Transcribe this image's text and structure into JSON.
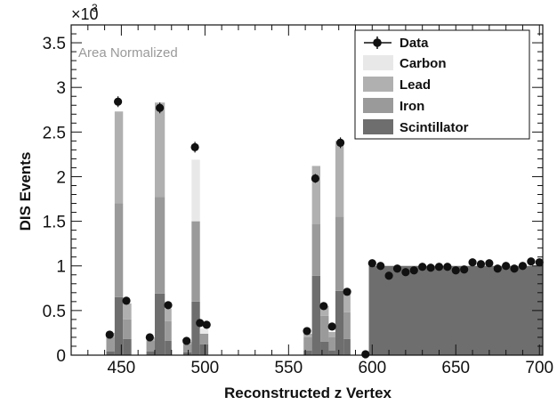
{
  "chart_data": {
    "type": "bar",
    "stacked": true,
    "title": "",
    "xlabel": "Reconstructed z Vertex",
    "ylabel": "DIS Events",
    "y_exponent_base": "×10",
    "y_exponent_power": "3",
    "annotation": "Area Normalized",
    "xlim": [
      420,
      702
    ],
    "ylim": [
      0,
      3.7
    ],
    "x_ticks": [
      450,
      500,
      550,
      600,
      650,
      700
    ],
    "y_ticks": [
      0,
      0.5,
      1,
      1.5,
      2,
      2.5,
      3,
      3.5
    ],
    "y_tick_labels": [
      "0",
      "0.5",
      "1",
      "1.5",
      "2",
      "2.5",
      "3",
      "3.5"
    ],
    "legend_position": "top-right",
    "series": [
      {
        "name": "Scintillator",
        "color": "#6e6e6e",
        "type": "bar"
      },
      {
        "name": "Iron",
        "color": "#9a9a9a",
        "type": "bar"
      },
      {
        "name": "Lead",
        "color": "#b0b0b0",
        "type": "bar"
      },
      {
        "name": "Carbon",
        "color": "#e8e8e8",
        "type": "bar"
      },
      {
        "name": "Data",
        "color": "#111111",
        "type": "points"
      }
    ],
    "bars": [
      {
        "x0": 441,
        "x1": 446,
        "values": [
          0.04,
          0.16,
          0.05,
          0
        ]
      },
      {
        "x0": 446,
        "x1": 451,
        "values": [
          0.65,
          1.05,
          1.03,
          0
        ]
      },
      {
        "x0": 451,
        "x1": 456,
        "values": [
          0.18,
          0.22,
          0.18,
          0
        ]
      },
      {
        "x0": 465,
        "x1": 470,
        "values": [
          0.04,
          0.12,
          0.04,
          0
        ]
      },
      {
        "x0": 470,
        "x1": 476,
        "values": [
          0.69,
          1.08,
          1.06,
          0
        ]
      },
      {
        "x0": 476,
        "x1": 480,
        "values": [
          0.16,
          0.22,
          0.14,
          0
        ]
      },
      {
        "x0": 487,
        "x1": 492,
        "values": [
          0.03,
          0.09,
          0.03,
          0
        ]
      },
      {
        "x0": 492,
        "x1": 497,
        "values": [
          0.6,
          0.9,
          0,
          0.69
        ]
      },
      {
        "x0": 497,
        "x1": 502,
        "values": [
          0.12,
          0.12,
          0,
          0.06
        ]
      },
      {
        "x0": 559,
        "x1": 564,
        "values": [
          0.05,
          0.15,
          0.04,
          0
        ]
      },
      {
        "x0": 564,
        "x1": 569,
        "values": [
          0.89,
          0.58,
          0.65,
          0
        ]
      },
      {
        "x0": 569,
        "x1": 574,
        "values": [
          0.15,
          0.29,
          0.11,
          0
        ]
      },
      {
        "x0": 574,
        "x1": 578,
        "values": [
          0.05,
          0.15,
          0.06,
          0
        ]
      },
      {
        "x0": 578,
        "x1": 583,
        "values": [
          0.72,
          0.83,
          0.85,
          0
        ]
      },
      {
        "x0": 583,
        "x1": 587,
        "values": [
          0.18,
          0.3,
          0.2,
          0
        ]
      },
      {
        "x0": 598,
        "x1": 702,
        "values": [
          1.0,
          0,
          0,
          0
        ]
      }
    ],
    "data_points": [
      {
        "x": 443,
        "y": 0.23,
        "err": 0.03
      },
      {
        "x": 448,
        "y": 2.84,
        "err": 0.06
      },
      {
        "x": 453,
        "y": 0.61,
        "err": 0.03
      },
      {
        "x": 467,
        "y": 0.2,
        "err": 0.03
      },
      {
        "x": 473,
        "y": 2.77,
        "err": 0.06
      },
      {
        "x": 478,
        "y": 0.56,
        "err": 0.03
      },
      {
        "x": 489,
        "y": 0.16,
        "err": 0.03
      },
      {
        "x": 494,
        "y": 2.33,
        "err": 0.06
      },
      {
        "x": 497,
        "y": 0.36,
        "err": 0.03
      },
      {
        "x": 501,
        "y": 0.34,
        "err": 0.03
      },
      {
        "x": 561,
        "y": 0.27,
        "err": 0.03
      },
      {
        "x": 566,
        "y": 1.98,
        "err": 0.05
      },
      {
        "x": 571,
        "y": 0.55,
        "err": 0.03
      },
      {
        "x": 576,
        "y": 0.32,
        "err": 0.03
      },
      {
        "x": 581,
        "y": 2.38,
        "err": 0.06
      },
      {
        "x": 585,
        "y": 0.71,
        "err": 0.03
      },
      {
        "x": 596,
        "y": 0.01,
        "err": 0.01
      },
      {
        "x": 600,
        "y": 1.03,
        "err": 0.03
      },
      {
        "x": 605,
        "y": 1.0,
        "err": 0.03
      },
      {
        "x": 610,
        "y": 0.89,
        "err": 0.03
      },
      {
        "x": 615,
        "y": 0.97,
        "err": 0.03
      },
      {
        "x": 620,
        "y": 0.93,
        "err": 0.03
      },
      {
        "x": 625,
        "y": 0.95,
        "err": 0.03
      },
      {
        "x": 630,
        "y": 0.99,
        "err": 0.03
      },
      {
        "x": 635,
        "y": 0.98,
        "err": 0.03
      },
      {
        "x": 640,
        "y": 0.99,
        "err": 0.03
      },
      {
        "x": 645,
        "y": 0.99,
        "err": 0.03
      },
      {
        "x": 650,
        "y": 0.95,
        "err": 0.03
      },
      {
        "x": 655,
        "y": 0.96,
        "err": 0.03
      },
      {
        "x": 660,
        "y": 1.04,
        "err": 0.03
      },
      {
        "x": 665,
        "y": 1.02,
        "err": 0.03
      },
      {
        "x": 670,
        "y": 1.03,
        "err": 0.03
      },
      {
        "x": 675,
        "y": 0.97,
        "err": 0.03
      },
      {
        "x": 680,
        "y": 1.0,
        "err": 0.03
      },
      {
        "x": 685,
        "y": 0.97,
        "err": 0.03
      },
      {
        "x": 690,
        "y": 1.0,
        "err": 0.03
      },
      {
        "x": 695,
        "y": 1.05,
        "err": 0.03
      },
      {
        "x": 700,
        "y": 1.04,
        "err": 0.03
      }
    ]
  }
}
